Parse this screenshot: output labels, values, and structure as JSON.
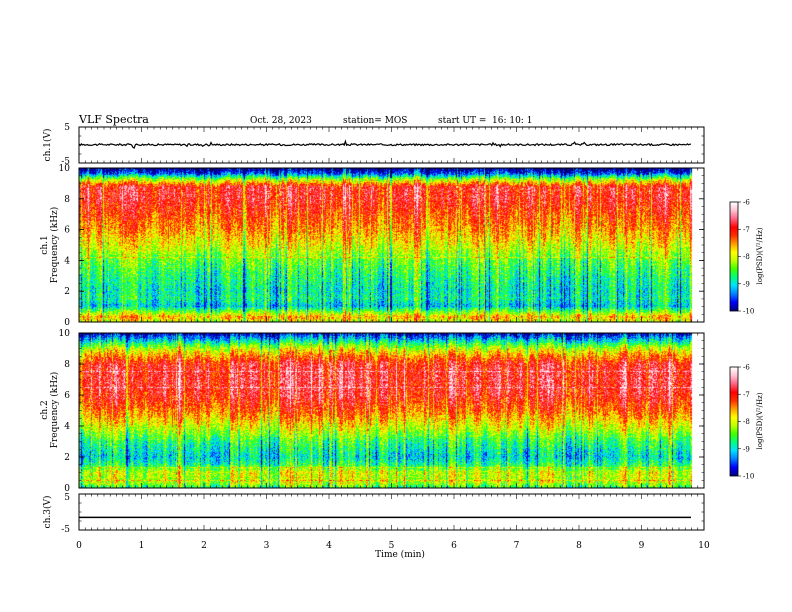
{
  "header": {
    "title": "VLF Spectra",
    "date": "Oct. 28, 2023",
    "station": "station= MOS",
    "start_label": "start  UT =",
    "start_time": "16: 10: 1"
  },
  "colors": {
    "spectrogram_scale": [
      "#000080",
      "#0000ff",
      "#0080ff",
      "#00e0ff",
      "#00ff80",
      "#40ff00",
      "#c0ff00",
      "#ffff00",
      "#ffa000",
      "#ff3000",
      "#ff0000",
      "#ff6080",
      "#ffc0d0",
      "#ffffff"
    ]
  },
  "chart_data": [
    {
      "type": "line",
      "panel": "ch1-waveform",
      "ylabel": "ch.1(V)",
      "ylim": [
        -5,
        5
      ],
      "yticks": [
        "5",
        "-5"
      ],
      "xlim": [
        0,
        10
      ],
      "series": [
        {
          "description_value": 0.1,
          "x": [
            0,
            9.8
          ],
          "y": [
            0.1,
            0.1
          ]
        }
      ]
    },
    {
      "type": "heatmap",
      "panel": "ch1-spectrogram",
      "ylabel_line1": "ch.1",
      "ylabel_line2": "Frequency (kHz)",
      "ylim": [
        0,
        10
      ],
      "yticks": [
        "0",
        "2",
        "4",
        "6",
        "8",
        "10"
      ],
      "xlim": [
        0,
        10
      ],
      "x_extent": [
        0,
        9.8
      ],
      "colorbar": {
        "label": "log(PSD)(V²/Hz)",
        "range": [
          -10,
          -6
        ],
        "ticks": [
          "-6",
          "-7",
          "-8",
          "-9",
          "-10"
        ]
      },
      "profile_freq_khz": [
        0,
        0.3,
        1,
        1.5,
        2,
        3,
        4,
        5,
        6,
        7,
        8,
        8.8,
        9.3,
        9.7,
        10
      ],
      "profile_log_psd": [
        -8.0,
        -7.6,
        -9.1,
        -8.8,
        -8.9,
        -8.7,
        -8.4,
        -7.9,
        -7.5,
        -7.2,
        -6.9,
        -6.9,
        -8.2,
        -9.6,
        -10.0
      ]
    },
    {
      "type": "heatmap",
      "panel": "ch2-spectrogram",
      "ylabel_line1": "ch.2",
      "ylabel_line2": "Frequency (kHz)",
      "ylim": [
        0,
        10
      ],
      "yticks": [
        "0",
        "2",
        "4",
        "6",
        "8",
        "10"
      ],
      "xlim": [
        0,
        10
      ],
      "x_extent": [
        0,
        9.8
      ],
      "colorbar": {
        "label": "log(PSD)(V²/Hz)",
        "range": [
          -10,
          -6
        ],
        "ticks": [
          "-6",
          "-7",
          "-8",
          "-9",
          "-10"
        ]
      },
      "profile_freq_khz": [
        0,
        0.3,
        1,
        1.5,
        2,
        3,
        4,
        5,
        6,
        7,
        8,
        8.5,
        9,
        9.5,
        10
      ],
      "profile_log_psd": [
        -8.6,
        -8.1,
        -8.0,
        -8.7,
        -9.0,
        -8.6,
        -7.9,
        -7.3,
        -6.9,
        -6.8,
        -6.9,
        -7.4,
        -8.0,
        -8.9,
        -9.8
      ]
    },
    {
      "type": "line",
      "panel": "ch3-waveform",
      "ylabel": "ch.3(V)",
      "ylim": [
        -5,
        5
      ],
      "yticks": [
        "5",
        "-5"
      ],
      "xlim": [
        0,
        10
      ],
      "series": [
        {
          "x": [
            0,
            9.8
          ],
          "y": [
            -1.5,
            -1.5
          ]
        }
      ]
    }
  ],
  "xaxis": {
    "label": "Time (min)",
    "ticks": [
      "0",
      "1",
      "2",
      "3",
      "4",
      "5",
      "6",
      "7",
      "8",
      "9",
      "10"
    ]
  }
}
